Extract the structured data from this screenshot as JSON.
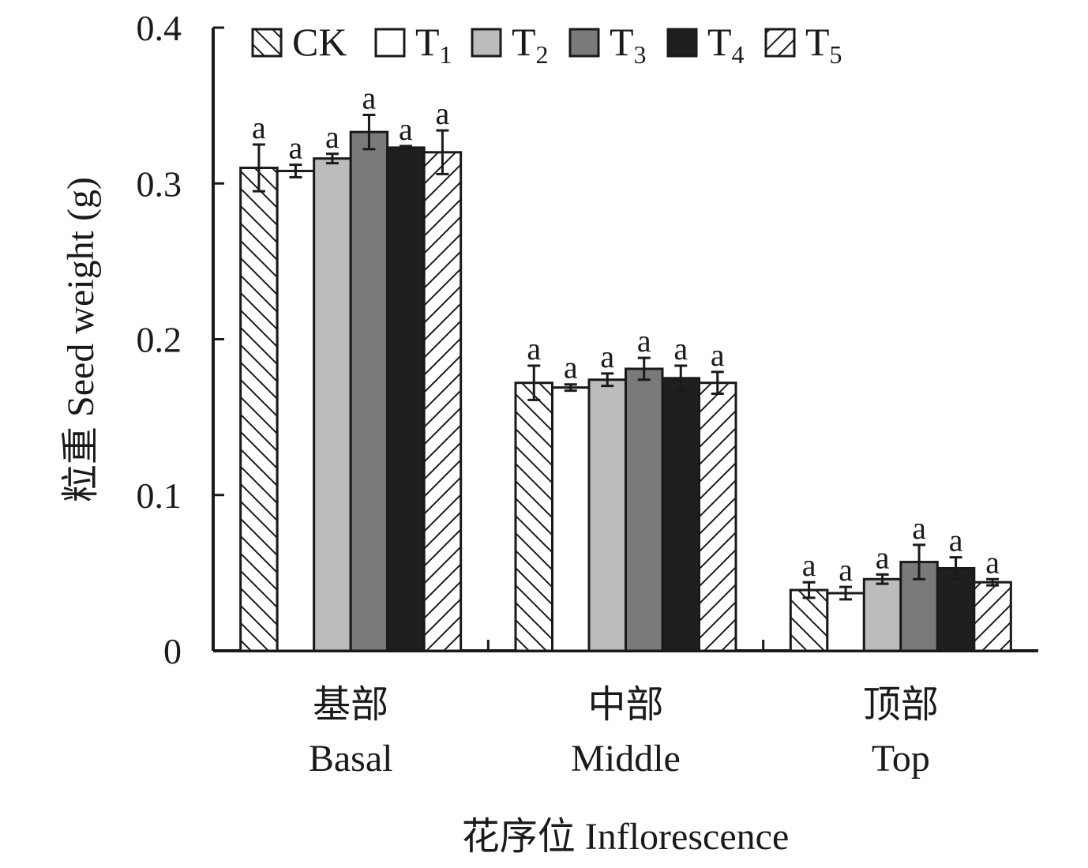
{
  "chart_data": {
    "type": "bar",
    "title": "",
    "ylabel": "粒重 Seed weight (g)",
    "xlabel": "花序位 Inflorescence",
    "ylim": [
      0,
      0.4
    ],
    "yticks": [
      {
        "value": 0,
        "label": "0"
      },
      {
        "value": 0.1,
        "label": "0.1"
      },
      {
        "value": 0.2,
        "label": "0.2"
      },
      {
        "value": 0.3,
        "label": "0.3"
      },
      {
        "value": 0.4,
        "label": "0.4"
      }
    ],
    "grid": false,
    "legend_position": "top",
    "categories": [
      {
        "cn": "基部",
        "en": "Basal"
      },
      {
        "cn": "中部",
        "en": "Middle"
      },
      {
        "cn": "顶部",
        "en": "Top"
      }
    ],
    "series": [
      {
        "name": "CK",
        "base": "CK",
        "sub": "",
        "fill": "hatch-back",
        "color": "#ffffff",
        "values": [
          0.31,
          0.172,
          0.039
        ],
        "errors": [
          0.015,
          0.011,
          0.005
        ],
        "significance": [
          "a",
          "a",
          "a"
        ]
      },
      {
        "name": "T1",
        "base": "T",
        "sub": "1",
        "fill": "solid",
        "color": "#ffffff",
        "values": [
          0.308,
          0.169,
          0.037
        ],
        "errors": [
          0.004,
          0.002,
          0.004
        ],
        "significance": [
          "a",
          "a",
          "a"
        ]
      },
      {
        "name": "T2",
        "base": "T",
        "sub": "2",
        "fill": "solid",
        "color": "#bcbcbc",
        "values": [
          0.316,
          0.174,
          0.046
        ],
        "errors": [
          0.003,
          0.004,
          0.003
        ],
        "significance": [
          "a",
          "a",
          "a"
        ]
      },
      {
        "name": "T3",
        "base": "T",
        "sub": "3",
        "fill": "solid",
        "color": "#7a7a7a",
        "values": [
          0.333,
          0.181,
          0.057
        ],
        "errors": [
          0.011,
          0.007,
          0.011
        ],
        "significance": [
          "a",
          "a",
          "a"
        ]
      },
      {
        "name": "T4",
        "base": "T",
        "sub": "4",
        "fill": "solid",
        "color": "#1f1f1f",
        "values": [
          0.323,
          0.175,
          0.053
        ],
        "errors": [
          0.001,
          0.008,
          0.007
        ],
        "significance": [
          "a",
          "a",
          "a"
        ]
      },
      {
        "name": "T5",
        "base": "T",
        "sub": "5",
        "fill": "hatch-fwd",
        "color": "#ffffff",
        "values": [
          0.32,
          0.172,
          0.044
        ],
        "errors": [
          0.014,
          0.007,
          0.002
        ],
        "significance": [
          "a",
          "a",
          "a"
        ]
      }
    ]
  }
}
